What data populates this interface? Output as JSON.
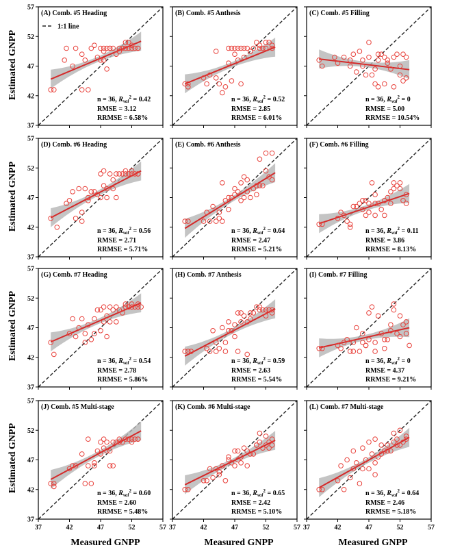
{
  "figure": {
    "xlabel": "Measured GNPP",
    "ylabel": "Estimated GNPP",
    "legend_label": "1:1 line",
    "ticks": [
      37,
      42,
      47,
      52,
      57
    ],
    "xlim": [
      37,
      57
    ],
    "ylim": [
      37,
      57
    ]
  },
  "colors": {
    "points": "#e8403a",
    "fit_line": "#d42a2a",
    "confidence_band": "#b5b5b5",
    "one_to_one": "#222222"
  },
  "chart_data": [
    {
      "type": "scatter",
      "panel": "A",
      "title": "(A) Comb. #5   Heading",
      "n_text": "n = 36, ",
      "r2_value": " = 0.42",
      "rmse": "RMSE = 3.12",
      "rrmse": "RRMSE = 6.58%",
      "fit": [
        [
          39,
          44.8
        ],
        [
          53.5,
          51.2
        ]
      ],
      "x": [
        39.0,
        39.5,
        41.2,
        41.5,
        42.5,
        43.0,
        44.0,
        44.5,
        44.0,
        45.0,
        45.5,
        46.0,
        47.0,
        47.0,
        47.5,
        47.5,
        48.0,
        48.0,
        48.5,
        49.0,
        49.5,
        50.0,
        50.5,
        51.0,
        51.0,
        51.5,
        51.5,
        52.0,
        52.0,
        52.5,
        53.0,
        53.0,
        46.5,
        47.5,
        48.5,
        50.0
      ],
      "y": [
        43.0,
        43.0,
        48.0,
        50.0,
        47.0,
        50.0,
        43.0,
        48.0,
        49.0,
        43.0,
        50.0,
        50.5,
        48.0,
        50.0,
        50.0,
        48.0,
        46.5,
        50.0,
        50.0,
        50.0,
        49.0,
        50.0,
        50.0,
        50.0,
        51.0,
        50.0,
        51.0,
        50.0,
        50.5,
        50.0,
        50.0,
        50.0,
        48.5,
        49.5,
        50.0,
        49.5
      ]
    },
    {
      "type": "scatter",
      "panel": "B",
      "title": "(B) Comb. #5   Anthesis",
      "n_text": "n = 36, ",
      "r2_value": " = 0.52",
      "rmse": "RMSE = 2.85",
      "rrmse": "RRMSE = 6.01%",
      "fit": [
        [
          39,
          44.0
        ],
        [
          53.5,
          50.2
        ]
      ],
      "x": [
        39.0,
        39.5,
        39.5,
        42.5,
        43.0,
        44.0,
        44.0,
        44.5,
        45.0,
        45.5,
        46.0,
        46.0,
        46.5,
        47.0,
        47.0,
        47.5,
        48.0,
        48.0,
        48.5,
        48.5,
        49.0,
        49.5,
        50.0,
        50.5,
        51.0,
        51.0,
        51.5,
        52.0,
        52.0,
        52.5,
        53.0,
        53.0,
        47.5,
        49.5,
        42.0,
        46.5
      ],
      "y": [
        44.0,
        43.5,
        44.0,
        44.0,
        45.5,
        45.0,
        49.5,
        44.0,
        42.5,
        43.5,
        50.0,
        47.5,
        50.0,
        50.0,
        49.0,
        50.0,
        50.0,
        44.0,
        50.0,
        48.5,
        50.0,
        49.5,
        50.0,
        51.0,
        50.0,
        50.5,
        50.0,
        51.0,
        50.0,
        51.0,
        50.0,
        50.5,
        48.0,
        49.5,
        45.0,
        44.5
      ]
    },
    {
      "type": "scatter",
      "panel": "C",
      "title": "(C) Comb. #5   Filling",
      "n_text": "n = 36, ",
      "r2_value": " = 0",
      "rmse": "RMSE = 5.00",
      "rrmse": "RRMSE = 10.54%",
      "fit": [
        [
          39,
          48.2
        ],
        [
          53.5,
          46.4
        ]
      ],
      "x": [
        39.0,
        39.5,
        42.0,
        43.0,
        44.0,
        44.5,
        45.0,
        45.5,
        46.0,
        46.0,
        47.0,
        47.0,
        47.5,
        48.0,
        48.5,
        48.5,
        49.0,
        49.5,
        49.5,
        50.0,
        50.5,
        51.0,
        51.0,
        51.5,
        52.0,
        52.0,
        52.5,
        53.0,
        53.0,
        48.0,
        46.5,
        50.0,
        44.0,
        41.5,
        48.5,
        52.5
      ],
      "y": [
        48.0,
        47.0,
        47.5,
        48.5,
        48.0,
        49.0,
        46.0,
        49.5,
        48.0,
        47.0,
        48.5,
        51.0,
        45.5,
        44.0,
        49.0,
        43.5,
        49.0,
        44.0,
        48.5,
        48.0,
        46.5,
        43.5,
        48.5,
        49.0,
        45.5,
        47.0,
        44.5,
        45.0,
        48.5,
        46.5,
        45.5,
        47.5,
        47.0,
        48.5,
        48.0,
        49.0
      ]
    },
    {
      "type": "scatter",
      "panel": "D",
      "title": "(D) Comb. #6   Heading",
      "n_text": "n = 36, ",
      "r2_value": " = 0.56",
      "rmse": "RMSE = 2.71",
      "rrmse": "RRMSE = 5.71%",
      "fit": [
        [
          39,
          43.6
        ],
        [
          53.5,
          51.5
        ]
      ],
      "x": [
        39.0,
        40.0,
        41.5,
        42.0,
        42.5,
        43.0,
        43.5,
        44.0,
        44.5,
        45.0,
        45.5,
        46.0,
        46.5,
        47.0,
        47.0,
        47.5,
        48.0,
        48.0,
        48.5,
        49.0,
        49.5,
        49.5,
        50.0,
        50.5,
        51.0,
        51.0,
        51.5,
        52.0,
        52.0,
        52.5,
        53.0,
        53.0,
        47.5,
        45.0,
        49.0,
        44.0
      ],
      "y": [
        43.5,
        42.0,
        46.0,
        46.5,
        48.0,
        43.5,
        48.5,
        43.0,
        48.5,
        47.0,
        48.0,
        48.0,
        47.5,
        51.0,
        47.0,
        51.5,
        47.0,
        48.5,
        51.0,
        50.0,
        47.0,
        51.0,
        51.0,
        51.0,
        51.0,
        51.5,
        51.0,
        51.0,
        51.5,
        51.0,
        51.0,
        51.0,
        49.0,
        46.5,
        48.5,
        44.5
      ]
    },
    {
      "type": "scatter",
      "panel": "E",
      "title": "(E) Comb. #6   Anthesis",
      "n_text": "n = 36, ",
      "r2_value": " = 0.64",
      "rmse": "RMSE = 2.47",
      "rrmse": "RRMSE = 5.21%",
      "fit": [
        [
          39,
          41.8
        ],
        [
          53.5,
          51.2
        ]
      ],
      "x": [
        39.0,
        39.5,
        42.0,
        42.5,
        43.0,
        43.5,
        44.0,
        44.5,
        45.0,
        45.0,
        45.5,
        46.0,
        46.5,
        47.0,
        47.0,
        47.5,
        48.0,
        48.0,
        48.5,
        49.0,
        49.0,
        49.5,
        50.0,
        50.5,
        51.0,
        51.0,
        51.5,
        52.0,
        52.0,
        52.5,
        53.0,
        53.0,
        46.0,
        48.5,
        50.5,
        44.5
      ],
      "y": [
        43.0,
        43.0,
        43.0,
        44.5,
        43.0,
        45.5,
        43.0,
        43.5,
        49.5,
        43.0,
        46.5,
        47.0,
        47.0,
        47.5,
        48.5,
        48.0,
        46.5,
        49.5,
        47.0,
        48.0,
        50.0,
        47.0,
        48.5,
        49.0,
        49.0,
        53.5,
        49.0,
        51.5,
        54.5,
        50.5,
        54.5,
        50.0,
        45.0,
        50.5,
        47.5,
        44.5
      ]
    },
    {
      "type": "scatter",
      "panel": "F",
      "title": "(F) Comb. #6   Filling",
      "n_text": "n = 36, ",
      "r2_value": " = 0.11",
      "rmse": "RMSE = 3.86",
      "rrmse": "RRMSE = 8.13%",
      "fit": [
        [
          39,
          42.6
        ],
        [
          53.5,
          47.7
        ]
      ],
      "x": [
        39.0,
        39.5,
        42.0,
        42.5,
        43.0,
        43.5,
        44.0,
        44.5,
        45.0,
        45.5,
        46.0,
        46.0,
        46.5,
        47.0,
        47.0,
        47.5,
        48.0,
        48.0,
        48.5,
        49.0,
        49.5,
        49.5,
        50.0,
        50.5,
        51.0,
        51.0,
        51.5,
        52.0,
        52.0,
        52.5,
        53.0,
        53.0,
        44.0,
        48.0,
        50.5,
        46.5
      ],
      "y": [
        42.5,
        42.5,
        43.5,
        44.5,
        44.0,
        43.0,
        42.0,
        45.5,
        45.5,
        46.0,
        45.0,
        46.5,
        44.0,
        44.5,
        46.0,
        49.5,
        44.0,
        46.0,
        46.0,
        45.0,
        44.0,
        46.5,
        47.0,
        46.0,
        49.5,
        48.5,
        49.0,
        48.5,
        49.5,
        46.5,
        47.5,
        46.0,
        42.5,
        47.5,
        48.0,
        46.5
      ]
    },
    {
      "type": "scatter",
      "panel": "G",
      "title": "(G) Comb. #7   Heading",
      "n_text": "n = 36, ",
      "r2_value": " = 0.54",
      "rmse": "RMSE = 2.78",
      "rrmse": "RRMSE = 5.86%",
      "fit": [
        [
          39,
          44.6
        ],
        [
          53.5,
          51.2
        ]
      ],
      "x": [
        39.0,
        39.5,
        42.0,
        42.5,
        43.0,
        43.5,
        44.0,
        44.5,
        45.0,
        45.5,
        46.0,
        46.5,
        47.0,
        47.0,
        47.5,
        47.5,
        48.0,
        48.0,
        48.5,
        49.0,
        49.5,
        50.0,
        50.5,
        51.0,
        51.0,
        51.5,
        52.0,
        52.0,
        52.5,
        53.0,
        53.0,
        53.5,
        46.0,
        44.5,
        48.5,
        49.5
      ],
      "y": [
        44.5,
        42.5,
        46.0,
        48.5,
        45.5,
        47.0,
        48.5,
        46.0,
        47.5,
        45.0,
        48.5,
        50.0,
        50.0,
        46.5,
        48.0,
        50.5,
        49.0,
        45.5,
        50.5,
        50.0,
        50.5,
        50.0,
        49.5,
        50.5,
        51.0,
        50.5,
        50.5,
        51.0,
        50.5,
        50.5,
        51.0,
        50.5,
        46.0,
        44.5,
        48.0,
        48.0
      ]
    },
    {
      "type": "scatter",
      "panel": "H",
      "title": "(H) Comb. #7   Anthesis",
      "n_text": "n = 36, ",
      "r2_value": " = 0.59",
      "rmse": "RMSE = 2.63",
      "rrmse": "RRMSE = 5.54%",
      "fit": [
        [
          39,
          42.2
        ],
        [
          53.5,
          50.2
        ]
      ],
      "x": [
        39.0,
        39.5,
        40.0,
        42.5,
        43.0,
        43.5,
        44.0,
        44.5,
        45.0,
        45.5,
        46.0,
        46.0,
        46.5,
        47.0,
        47.0,
        47.5,
        48.0,
        48.0,
        48.5,
        49.0,
        49.5,
        49.5,
        50.0,
        50.5,
        51.0,
        51.0,
        51.5,
        52.0,
        52.0,
        52.5,
        53.0,
        53.0,
        45.5,
        47.5,
        49.0,
        44.0
      ],
      "y": [
        43.0,
        43.0,
        43.0,
        43.5,
        43.0,
        46.5,
        43.0,
        43.5,
        47.0,
        43.0,
        46.5,
        48.0,
        46.5,
        45.5,
        47.5,
        49.5,
        48.0,
        49.5,
        49.0,
        48.0,
        49.5,
        48.5,
        49.5,
        50.5,
        50.0,
        50.5,
        50.0,
        49.0,
        50.0,
        50.0,
        49.5,
        50.0,
        44.5,
        43.0,
        42.5,
        44.5
      ]
    },
    {
      "type": "scatter",
      "panel": "I",
      "title": "(I) Comb. #7   Filling",
      "n_text": "n = 36, ",
      "r2_value": " = 0",
      "rmse": "RMSE = 4.37",
      "rrmse": "RRMSE = 9.21%",
      "fit": [
        [
          39,
          43.6
        ],
        [
          53.5,
          47.0
        ]
      ],
      "x": [
        39.0,
        39.5,
        42.0,
        42.5,
        43.0,
        43.5,
        44.0,
        44.5,
        45.0,
        45.5,
        46.0,
        46.0,
        46.5,
        47.0,
        47.0,
        47.5,
        48.0,
        48.0,
        48.5,
        49.0,
        49.5,
        50.0,
        50.5,
        51.0,
        51.0,
        51.5,
        52.0,
        52.0,
        52.5,
        53.0,
        53.0,
        53.5,
        44.5,
        46.5,
        49.5,
        50.5
      ],
      "y": [
        43.5,
        43.5,
        44.0,
        43.5,
        44.5,
        45.0,
        43.0,
        44.5,
        47.0,
        43.0,
        44.5,
        46.0,
        44.0,
        45.0,
        49.5,
        50.5,
        44.5,
        43.0,
        49.0,
        46.0,
        43.5,
        45.0,
        47.5,
        50.0,
        51.0,
        46.0,
        45.5,
        49.0,
        47.5,
        46.0,
        48.0,
        44.0,
        43.0,
        44.0,
        45.0,
        46.5
      ]
    },
    {
      "type": "scatter",
      "panel": "J",
      "title": "(J) Comb. #5   Multi-stage",
      "n_text": "n = 36, ",
      "r2_value": " = 0.60",
      "rmse": "RMSE = 2.60",
      "rrmse": "RRMSE = 5.48%",
      "fit": [
        [
          39,
          43.7
        ],
        [
          53.5,
          51.9
        ]
      ],
      "x": [
        39.0,
        39.5,
        39.5,
        42.0,
        42.5,
        43.0,
        44.0,
        44.5,
        45.0,
        45.5,
        46.0,
        46.5,
        47.0,
        47.0,
        47.5,
        47.5,
        48.0,
        48.0,
        48.5,
        49.0,
        49.5,
        50.0,
        50.5,
        51.0,
        51.0,
        51.5,
        52.0,
        52.0,
        52.5,
        53.0,
        53.0,
        45.0,
        46.0,
        48.5,
        49.0,
        50.0
      ],
      "y": [
        43.0,
        43.0,
        42.5,
        45.5,
        46.0,
        46.0,
        48.0,
        43.0,
        50.5,
        43.0,
        46.0,
        48.5,
        50.0,
        48.0,
        50.5,
        49.0,
        50.0,
        48.5,
        48.5,
        50.0,
        50.0,
        50.5,
        50.0,
        50.5,
        50.5,
        50.5,
        50.0,
        50.5,
        50.5,
        50.5,
        50.5,
        46.0,
        46.5,
        46.0,
        46.0,
        50.0
      ]
    },
    {
      "type": "scatter",
      "panel": "K",
      "title": "(K) Comb. #6   Multi-stage",
      "n_text": "n = 36, ",
      "r2_value": " = 0.65",
      "rmse": "RMSE = 2.42",
      "rrmse": "RRMSE = 5.10%",
      "fit": [
        [
          39,
          42.8
        ],
        [
          53.5,
          50.3
        ]
      ],
      "x": [
        39.0,
        39.5,
        42.0,
        42.5,
        43.0,
        43.5,
        44.0,
        44.5,
        45.0,
        45.5,
        46.0,
        46.5,
        47.0,
        47.0,
        47.5,
        48.0,
        48.0,
        48.5,
        49.0,
        49.5,
        50.0,
        50.5,
        51.0,
        51.0,
        51.5,
        52.0,
        52.0,
        52.5,
        53.0,
        53.0,
        44.5,
        46.0,
        47.5,
        49.0,
        50.5,
        52.5
      ],
      "y": [
        42.0,
        42.0,
        43.5,
        43.5,
        45.5,
        44.0,
        45.5,
        44.5,
        46.0,
        43.5,
        47.0,
        46.5,
        46.0,
        48.5,
        48.5,
        47.5,
        46.5,
        49.0,
        48.5,
        48.0,
        48.0,
        49.5,
        50.0,
        51.5,
        49.0,
        51.0,
        49.5,
        50.0,
        50.5,
        49.5,
        45.0,
        47.5,
        47.0,
        46.0,
        49.5,
        49.0
      ]
    },
    {
      "type": "scatter",
      "panel": "L",
      "title": "(L) Comb. #7   Multi-stage",
      "n_text": "n = 36, ",
      "r2_value": " = 0.64",
      "rmse": "RMSE = 2.46",
      "rrmse": "RRMSE = 5.18%",
      "fit": [
        [
          39,
          42.3
        ],
        [
          53.5,
          50.8
        ]
      ],
      "x": [
        39.0,
        39.5,
        42.0,
        42.5,
        43.0,
        43.5,
        44.0,
        44.5,
        45.0,
        45.5,
        46.0,
        46.5,
        47.0,
        47.0,
        47.5,
        48.0,
        48.0,
        48.5,
        49.0,
        49.0,
        49.5,
        50.0,
        50.5,
        51.0,
        51.0,
        51.5,
        52.0,
        52.0,
        52.5,
        53.0,
        53.0,
        44.5,
        46.0,
        48.0,
        50.0,
        51.5
      ],
      "y": [
        42.0,
        42.0,
        43.5,
        46.0,
        42.0,
        47.0,
        44.0,
        45.5,
        46.5,
        43.0,
        45.5,
        47.0,
        45.5,
        50.0,
        48.0,
        50.5,
        46.5,
        47.5,
        49.5,
        48.0,
        48.5,
        49.5,
        48.5,
        50.0,
        51.5,
        50.5,
        52.0,
        49.5,
        50.0,
        51.0,
        50.5,
        48.5,
        49.0,
        44.5,
        48.5,
        49.5
      ]
    }
  ]
}
